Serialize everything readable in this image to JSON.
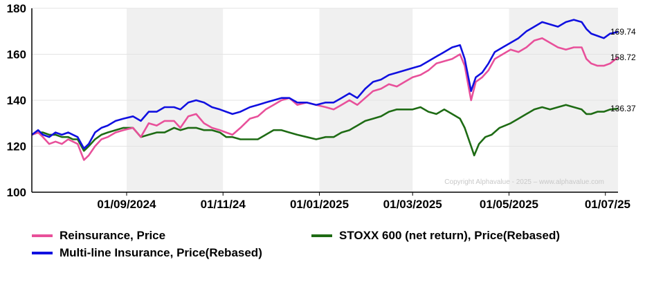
{
  "chart_data": {
    "type": "line",
    "ylim": [
      100,
      180
    ],
    "yticks": [
      100,
      120,
      140,
      160,
      180
    ],
    "x_tick_labels": [
      "01/09/2024",
      "01/11/24",
      "01/01/2025",
      "01/03/2025",
      "01/05/2025",
      "01/07/25"
    ],
    "x_tick_dates": [
      "2024-09-01",
      "2024-11-01",
      "2025-01-01",
      "2025-03-01",
      "2025-05-01",
      "2025-07-01"
    ],
    "xlim": [
      "2024-07-03",
      "2025-07-09"
    ],
    "shaded_bands": [
      [
        "2024-09-01",
        "2024-11-01"
      ],
      [
        "2025-01-01",
        "2025-03-01"
      ],
      [
        "2025-05-01",
        "2025-07-09"
      ]
    ],
    "grid": true,
    "copyright": "Copyright Alphavalue - 2025 – www.alphavalue.com",
    "end_labels": [
      "169.74",
      "158.72",
      "136.37"
    ],
    "series": [
      {
        "name": "Reinsurance, Price",
        "color": "#e8509a",
        "points": [
          [
            "2024-07-03",
            125
          ],
          [
            "2024-07-07",
            126
          ],
          [
            "2024-07-10",
            124
          ],
          [
            "2024-07-14",
            121
          ],
          [
            "2024-07-18",
            122
          ],
          [
            "2024-07-22",
            121
          ],
          [
            "2024-07-26",
            123
          ],
          [
            "2024-07-29",
            122
          ],
          [
            "2024-08-01",
            121
          ],
          [
            "2024-08-05",
            114
          ],
          [
            "2024-08-08",
            116
          ],
          [
            "2024-08-12",
            120
          ],
          [
            "2024-08-16",
            123
          ],
          [
            "2024-08-20",
            124
          ],
          [
            "2024-08-25",
            126
          ],
          [
            "2024-08-30",
            127
          ],
          [
            "2024-09-05",
            128
          ],
          [
            "2024-09-10",
            124
          ],
          [
            "2024-09-15",
            130
          ],
          [
            "2024-09-20",
            129
          ],
          [
            "2024-09-25",
            131
          ],
          [
            "2024-10-01",
            131
          ],
          [
            "2024-10-05",
            128
          ],
          [
            "2024-10-10",
            133
          ],
          [
            "2024-10-15",
            134
          ],
          [
            "2024-10-20",
            130
          ],
          [
            "2024-10-25",
            128
          ],
          [
            "2024-10-30",
            127
          ],
          [
            "2024-11-03",
            126
          ],
          [
            "2024-11-07",
            125
          ],
          [
            "2024-11-12",
            128
          ],
          [
            "2024-11-18",
            132
          ],
          [
            "2024-11-23",
            133
          ],
          [
            "2024-11-28",
            136
          ],
          [
            "2024-12-03",
            138
          ],
          [
            "2024-12-08",
            140
          ],
          [
            "2024-12-13",
            141
          ],
          [
            "2024-12-18",
            138
          ],
          [
            "2024-12-24",
            139
          ],
          [
            "2024-12-30",
            138
          ],
          [
            "2025-01-05",
            137
          ],
          [
            "2025-01-10",
            136
          ],
          [
            "2025-01-15",
            138
          ],
          [
            "2025-01-20",
            140
          ],
          [
            "2025-01-25",
            138
          ],
          [
            "2025-01-30",
            141
          ],
          [
            "2025-02-04",
            144
          ],
          [
            "2025-02-09",
            145
          ],
          [
            "2025-02-14",
            147
          ],
          [
            "2025-02-19",
            146
          ],
          [
            "2025-02-24",
            148
          ],
          [
            "2025-03-01",
            150
          ],
          [
            "2025-03-06",
            151
          ],
          [
            "2025-03-11",
            153
          ],
          [
            "2025-03-16",
            156
          ],
          [
            "2025-03-21",
            157
          ],
          [
            "2025-03-26",
            158
          ],
          [
            "2025-03-31",
            160
          ],
          [
            "2025-04-03",
            155
          ],
          [
            "2025-04-07",
            140
          ],
          [
            "2025-04-10",
            148
          ],
          [
            "2025-04-14",
            150
          ],
          [
            "2025-04-18",
            153
          ],
          [
            "2025-04-22",
            158
          ],
          [
            "2025-04-27",
            160
          ],
          [
            "2025-05-02",
            162
          ],
          [
            "2025-05-07",
            161
          ],
          [
            "2025-05-12",
            163
          ],
          [
            "2025-05-17",
            166
          ],
          [
            "2025-05-22",
            167
          ],
          [
            "2025-05-27",
            165
          ],
          [
            "2025-06-01",
            163
          ],
          [
            "2025-06-06",
            162
          ],
          [
            "2025-06-11",
            163
          ],
          [
            "2025-06-16",
            163
          ],
          [
            "2025-06-19",
            158
          ],
          [
            "2025-06-22",
            156
          ],
          [
            "2025-06-26",
            155
          ],
          [
            "2025-06-30",
            155
          ],
          [
            "2025-07-04",
            156
          ],
          [
            "2025-07-09",
            158.72
          ]
        ]
      },
      {
        "name": "Multi-line Insurance, Price(Rebased)",
        "color": "#1010e0",
        "points": [
          [
            "2024-07-03",
            125
          ],
          [
            "2024-07-07",
            127
          ],
          [
            "2024-07-10",
            125
          ],
          [
            "2024-07-14",
            124
          ],
          [
            "2024-07-18",
            126
          ],
          [
            "2024-07-22",
            125
          ],
          [
            "2024-07-26",
            126
          ],
          [
            "2024-07-29",
            125
          ],
          [
            "2024-08-01",
            124
          ],
          [
            "2024-08-05",
            119
          ],
          [
            "2024-08-08",
            121
          ],
          [
            "2024-08-12",
            126
          ],
          [
            "2024-08-16",
            128
          ],
          [
            "2024-08-20",
            129
          ],
          [
            "2024-08-25",
            131
          ],
          [
            "2024-08-30",
            132
          ],
          [
            "2024-09-05",
            133
          ],
          [
            "2024-09-10",
            131
          ],
          [
            "2024-09-15",
            135
          ],
          [
            "2024-09-20",
            135
          ],
          [
            "2024-09-25",
            137
          ],
          [
            "2024-10-01",
            137
          ],
          [
            "2024-10-05",
            136
          ],
          [
            "2024-10-10",
            139
          ],
          [
            "2024-10-15",
            140
          ],
          [
            "2024-10-20",
            139
          ],
          [
            "2024-10-25",
            137
          ],
          [
            "2024-10-30",
            136
          ],
          [
            "2024-11-03",
            135
          ],
          [
            "2024-11-07",
            134
          ],
          [
            "2024-11-12",
            135
          ],
          [
            "2024-11-18",
            137
          ],
          [
            "2024-11-23",
            138
          ],
          [
            "2024-11-28",
            139
          ],
          [
            "2024-12-03",
            140
          ],
          [
            "2024-12-08",
            141
          ],
          [
            "2024-12-13",
            141
          ],
          [
            "2024-12-18",
            139
          ],
          [
            "2024-12-24",
            139
          ],
          [
            "2024-12-30",
            138
          ],
          [
            "2025-01-05",
            139
          ],
          [
            "2025-01-10",
            139
          ],
          [
            "2025-01-15",
            141
          ],
          [
            "2025-01-20",
            143
          ],
          [
            "2025-01-25",
            141
          ],
          [
            "2025-01-30",
            145
          ],
          [
            "2025-02-04",
            148
          ],
          [
            "2025-02-09",
            149
          ],
          [
            "2025-02-14",
            151
          ],
          [
            "2025-02-19",
            152
          ],
          [
            "2025-02-24",
            153
          ],
          [
            "2025-03-01",
            154
          ],
          [
            "2025-03-06",
            155
          ],
          [
            "2025-03-11",
            157
          ],
          [
            "2025-03-16",
            159
          ],
          [
            "2025-03-21",
            161
          ],
          [
            "2025-03-26",
            163
          ],
          [
            "2025-03-31",
            164
          ],
          [
            "2025-04-03",
            158
          ],
          [
            "2025-04-07",
            144
          ],
          [
            "2025-04-10",
            150
          ],
          [
            "2025-04-14",
            152
          ],
          [
            "2025-04-18",
            156
          ],
          [
            "2025-04-22",
            161
          ],
          [
            "2025-04-27",
            163
          ],
          [
            "2025-05-02",
            165
          ],
          [
            "2025-05-07",
            167
          ],
          [
            "2025-05-12",
            170
          ],
          [
            "2025-05-17",
            172
          ],
          [
            "2025-05-22",
            174
          ],
          [
            "2025-05-27",
            173
          ],
          [
            "2025-06-01",
            172
          ],
          [
            "2025-06-06",
            174
          ],
          [
            "2025-06-11",
            175
          ],
          [
            "2025-06-16",
            174
          ],
          [
            "2025-06-19",
            171
          ],
          [
            "2025-06-22",
            169
          ],
          [
            "2025-06-26",
            168
          ],
          [
            "2025-06-30",
            167
          ],
          [
            "2025-07-04",
            169
          ],
          [
            "2025-07-09",
            169.74
          ]
        ]
      },
      {
        "name": "STOXX 600 (net return), Price(Rebased)",
        "color": "#1e6b14",
        "points": [
          [
            "2024-07-03",
            125
          ],
          [
            "2024-07-07",
            126
          ],
          [
            "2024-07-10",
            126
          ],
          [
            "2024-07-14",
            125
          ],
          [
            "2024-07-18",
            125
          ],
          [
            "2024-07-22",
            124
          ],
          [
            "2024-07-26",
            124
          ],
          [
            "2024-07-29",
            123
          ],
          [
            "2024-08-01",
            123
          ],
          [
            "2024-08-05",
            118
          ],
          [
            "2024-08-08",
            120
          ],
          [
            "2024-08-12",
            123
          ],
          [
            "2024-08-16",
            125
          ],
          [
            "2024-08-20",
            126
          ],
          [
            "2024-08-25",
            127
          ],
          [
            "2024-08-30",
            128
          ],
          [
            "2024-09-05",
            128
          ],
          [
            "2024-09-10",
            124
          ],
          [
            "2024-09-15",
            125
          ],
          [
            "2024-09-20",
            126
          ],
          [
            "2024-09-25",
            126
          ],
          [
            "2024-10-01",
            128
          ],
          [
            "2024-10-05",
            127
          ],
          [
            "2024-10-10",
            128
          ],
          [
            "2024-10-15",
            128
          ],
          [
            "2024-10-20",
            127
          ],
          [
            "2024-10-25",
            127
          ],
          [
            "2024-10-30",
            126
          ],
          [
            "2024-11-03",
            124
          ],
          [
            "2024-11-07",
            124
          ],
          [
            "2024-11-12",
            123
          ],
          [
            "2024-11-18",
            123
          ],
          [
            "2024-11-23",
            123
          ],
          [
            "2024-11-28",
            125
          ],
          [
            "2024-12-03",
            127
          ],
          [
            "2024-12-08",
            127
          ],
          [
            "2024-12-13",
            126
          ],
          [
            "2024-12-18",
            125
          ],
          [
            "2024-12-24",
            124
          ],
          [
            "2024-12-30",
            123
          ],
          [
            "2025-01-05",
            124
          ],
          [
            "2025-01-10",
            124
          ],
          [
            "2025-01-15",
            126
          ],
          [
            "2025-01-20",
            127
          ],
          [
            "2025-01-25",
            129
          ],
          [
            "2025-01-30",
            131
          ],
          [
            "2025-02-04",
            132
          ],
          [
            "2025-02-09",
            133
          ],
          [
            "2025-02-14",
            135
          ],
          [
            "2025-02-19",
            136
          ],
          [
            "2025-02-24",
            136
          ],
          [
            "2025-03-01",
            136
          ],
          [
            "2025-03-06",
            137
          ],
          [
            "2025-03-11",
            135
          ],
          [
            "2025-03-16",
            134
          ],
          [
            "2025-03-21",
            136
          ],
          [
            "2025-03-26",
            134
          ],
          [
            "2025-03-31",
            132
          ],
          [
            "2025-04-03",
            128
          ],
          [
            "2025-04-07",
            120
          ],
          [
            "2025-04-09",
            116
          ],
          [
            "2025-04-12",
            121
          ],
          [
            "2025-04-16",
            124
          ],
          [
            "2025-04-20",
            125
          ],
          [
            "2025-04-25",
            128
          ],
          [
            "2025-05-02",
            130
          ],
          [
            "2025-05-07",
            132
          ],
          [
            "2025-05-12",
            134
          ],
          [
            "2025-05-17",
            136
          ],
          [
            "2025-05-22",
            137
          ],
          [
            "2025-05-27",
            136
          ],
          [
            "2025-06-01",
            137
          ],
          [
            "2025-06-06",
            138
          ],
          [
            "2025-06-11",
            137
          ],
          [
            "2025-06-16",
            136
          ],
          [
            "2025-06-19",
            134
          ],
          [
            "2025-06-22",
            134
          ],
          [
            "2025-06-26",
            135
          ],
          [
            "2025-06-30",
            135
          ],
          [
            "2025-07-04",
            136
          ],
          [
            "2025-07-09",
            136.37
          ]
        ]
      }
    ],
    "legend": [
      {
        "label": "Reinsurance, Price",
        "color": "#e8509a"
      },
      {
        "label": "STOXX 600 (net return), Price(Rebased)",
        "color": "#1e6b14"
      },
      {
        "label": "Multi-line Insurance, Price(Rebased)",
        "color": "#1010e0"
      }
    ]
  }
}
